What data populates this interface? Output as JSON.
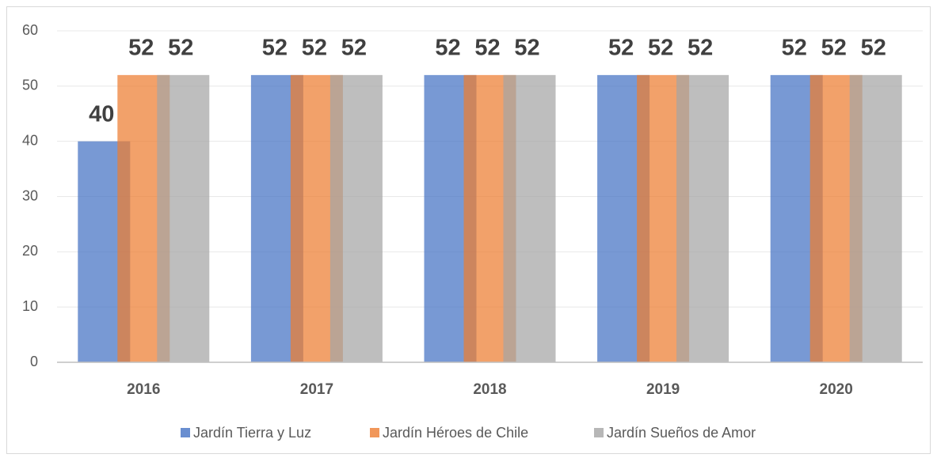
{
  "chart_data": {
    "type": "bar",
    "categories": [
      "2016",
      "2017",
      "2018",
      "2019",
      "2020"
    ],
    "series": [
      {
        "name": "Jardín Tierra y Luz",
        "color": "#4472c4",
        "values": [
          40,
          52,
          52,
          52,
          52
        ]
      },
      {
        "name": "Jardín Héroes de Chile",
        "color": "#ed7d31",
        "values": [
          52,
          52,
          52,
          52,
          52
        ]
      },
      {
        "name": "Jardín Sueños de Amor",
        "color": "#a5a5a5",
        "values": [
          52,
          52,
          52,
          52,
          52
        ]
      }
    ],
    "ylim": [
      0,
      60
    ],
    "yticks": [
      0,
      10,
      20,
      30,
      40,
      50,
      60
    ],
    "grid": true,
    "legend": "bottom"
  }
}
